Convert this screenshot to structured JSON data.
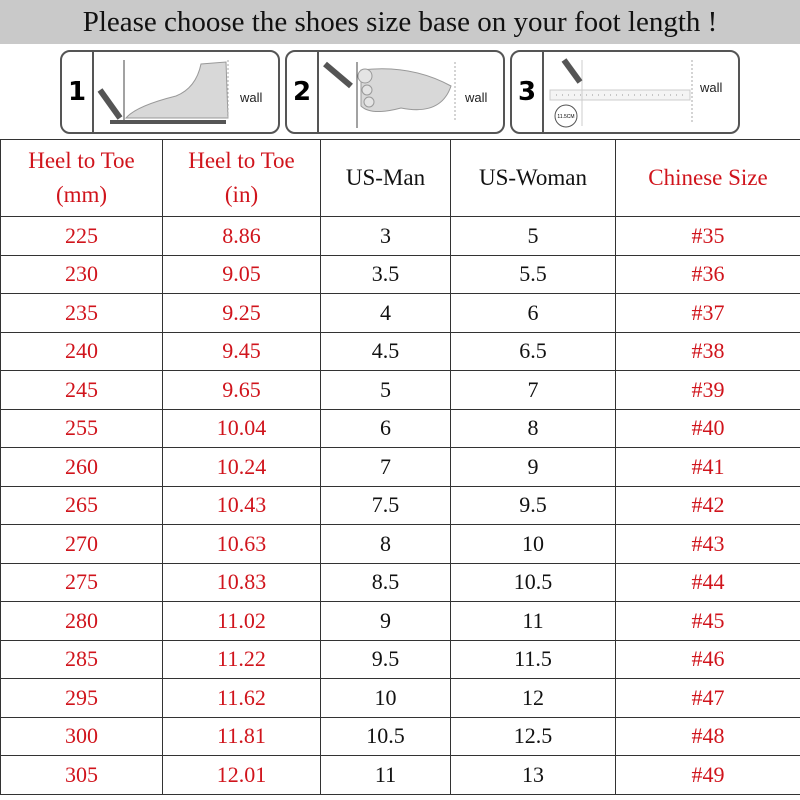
{
  "title": "Please choose the shoes size base on your foot length !",
  "steps": [
    {
      "number": "1",
      "label": "wall",
      "icon": "foot-side-measure-icon"
    },
    {
      "number": "2",
      "label": "wall",
      "icon": "foot-top-measure-icon"
    },
    {
      "number": "3",
      "label": "wall",
      "icon": "ruler-measure-icon",
      "badge": "11.5CM"
    }
  ],
  "colors": {
    "accent_red": "#d0141c",
    "title_bg": "#c9c9c9"
  },
  "table": {
    "headers": [
      {
        "line1": "Heel to Toe",
        "line2": "(mm)"
      },
      {
        "line1": "Heel to Toe",
        "line2": "(in)"
      },
      {
        "line1": "US-Man",
        "line2": ""
      },
      {
        "line1": "US-Woman",
        "line2": ""
      },
      {
        "line1": "Chinese Size",
        "line2": ""
      }
    ],
    "rows": [
      [
        "225",
        "8.86",
        "3",
        "5",
        "#35"
      ],
      [
        "230",
        "9.05",
        "3.5",
        "5.5",
        "#36"
      ],
      [
        "235",
        "9.25",
        "4",
        "6",
        "#37"
      ],
      [
        "240",
        "9.45",
        "4.5",
        "6.5",
        "#38"
      ],
      [
        "245",
        "9.65",
        "5",
        "7",
        "#39"
      ],
      [
        "255",
        "10.04",
        "6",
        "8",
        "#40"
      ],
      [
        "260",
        "10.24",
        "7",
        "9",
        "#41"
      ],
      [
        "265",
        "10.43",
        "7.5",
        "9.5",
        "#42"
      ],
      [
        "270",
        "10.63",
        "8",
        "10",
        "#43"
      ],
      [
        "275",
        "10.83",
        "8.5",
        "10.5",
        "#44"
      ],
      [
        "280",
        "11.02",
        "9",
        "11",
        "#45"
      ],
      [
        "285",
        "11.22",
        "9.5",
        "11.5",
        "#46"
      ],
      [
        "295",
        "11.62",
        "10",
        "12",
        "#47"
      ],
      [
        "300",
        "11.81",
        "10.5",
        "12.5",
        "#48"
      ],
      [
        "305",
        "12.01",
        "11",
        "13",
        "#49"
      ]
    ]
  }
}
